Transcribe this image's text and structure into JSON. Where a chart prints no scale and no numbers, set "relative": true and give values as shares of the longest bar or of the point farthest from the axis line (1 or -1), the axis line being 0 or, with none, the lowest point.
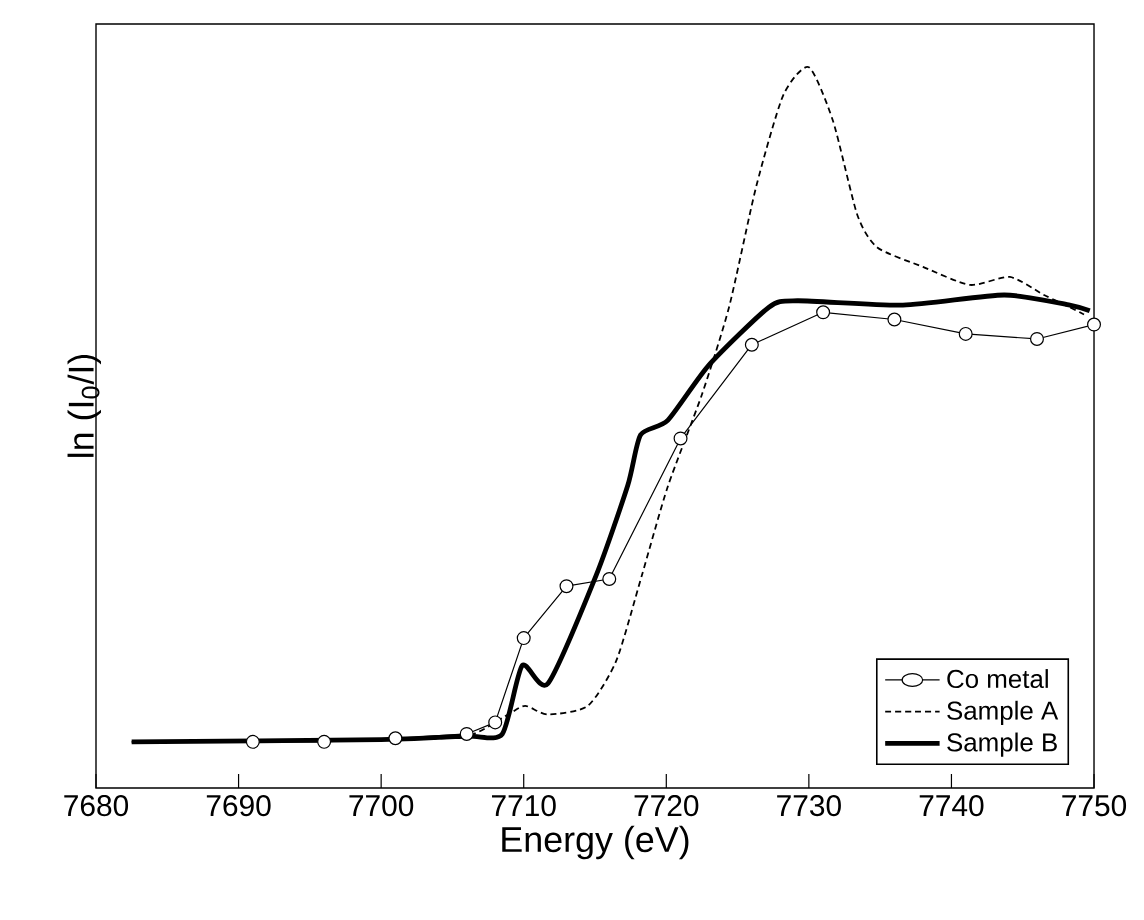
{
  "chart_data": {
    "type": "line",
    "xlabel": "Energy (eV)",
    "ylabel": "ln (I$_{0}$/I)",
    "relative": true,
    "xlim": [
      7680,
      7750
    ],
    "xticks": [
      7680,
      7690,
      7700,
      7710,
      7720,
      7730,
      7740,
      7750
    ],
    "legend": "bottom right",
    "grid": false,
    "series": [
      {
        "name": "Co metal",
        "color": "#000000",
        "marker": "circle",
        "line_style": "solid",
        "x": [
          7691,
          7696,
          7701,
          7706,
          7708,
          7710,
          7713,
          7716,
          7721,
          7726,
          7731,
          7736,
          7741,
          7746,
          7750
        ],
        "values": [
          0.064,
          0.064,
          0.069,
          0.075,
          0.091,
          0.208,
          0.28,
          0.29,
          0.485,
          0.615,
          0.66,
          0.65,
          0.63,
          0.623,
          0.643
        ]
      },
      {
        "name": "Sample A",
        "color": "#000000",
        "marker": "none",
        "line_style": "dashed",
        "x": [
          7682.5,
          7700,
          7706,
          7708.9,
          7710.1,
          7711.7,
          7714.5,
          7716.5,
          7718.3,
          7720.1,
          7722.5,
          7724.4,
          7726.3,
          7728.2,
          7730,
          7731.7,
          7733.4,
          7734.8,
          7738,
          7741.3,
          7744.1,
          7746.5,
          7748.3,
          7749.3
        ],
        "values": [
          0.064,
          0.067,
          0.072,
          0.102,
          0.114,
          0.102,
          0.114,
          0.177,
          0.296,
          0.418,
          0.546,
          0.667,
          0.834,
          0.961,
          1.0,
          0.925,
          0.795,
          0.75,
          0.723,
          0.698,
          0.709,
          0.684,
          0.667,
          0.657
        ]
      },
      {
        "name": "Sample B",
        "color": "#000000",
        "marker": "none",
        "line_style": "solid",
        "x": [
          7682.5,
          7700,
          7706,
          7708.5,
          7709.9,
          7711.7,
          7715.1,
          7717.3,
          7718.2,
          7720.1,
          7723,
          7727.2,
          7729.2,
          7736.6,
          7743.7,
          7748.3,
          7749.7
        ],
        "values": [
          0.064,
          0.067,
          0.072,
          0.075,
          0.17,
          0.145,
          0.296,
          0.42,
          0.49,
          0.51,
          0.587,
          0.667,
          0.676,
          0.67,
          0.684,
          0.67,
          0.662
        ]
      }
    ]
  }
}
